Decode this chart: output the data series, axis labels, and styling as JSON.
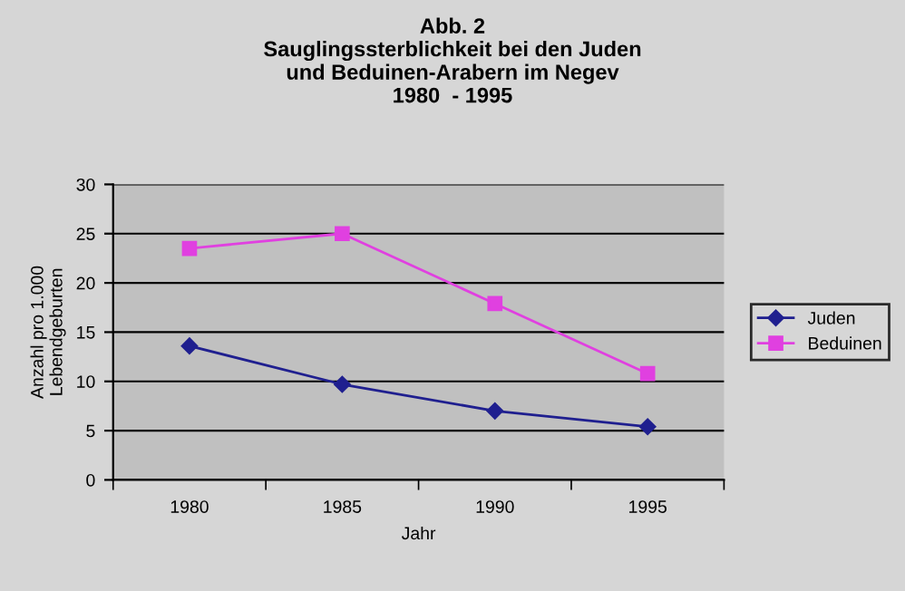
{
  "chart_data": {
    "type": "line",
    "title": "Abb. 2\nSauglingssterblichkeit bei den Juden\nund Beduinen-Arabern im Negev\n1980  - 1995",
    "xlabel": "Jahr",
    "ylabel": "Anzahl pro 1.000\nLebendgeburten",
    "categories": [
      "1980",
      "1985",
      "1990",
      "1995"
    ],
    "series": [
      {
        "name": "Juden",
        "color": "#1f1f8f",
        "marker": "diamond",
        "values": [
          13.6,
          9.7,
          7.0,
          5.4
        ]
      },
      {
        "name": "Beduinen",
        "color": "#e040e0",
        "marker": "square",
        "values": [
          23.5,
          25.0,
          17.9,
          10.8
        ]
      }
    ],
    "ylim": [
      0,
      30
    ],
    "yticks": [
      0,
      5,
      10,
      15,
      20,
      25,
      30
    ],
    "grid": "y",
    "legend": "right"
  }
}
